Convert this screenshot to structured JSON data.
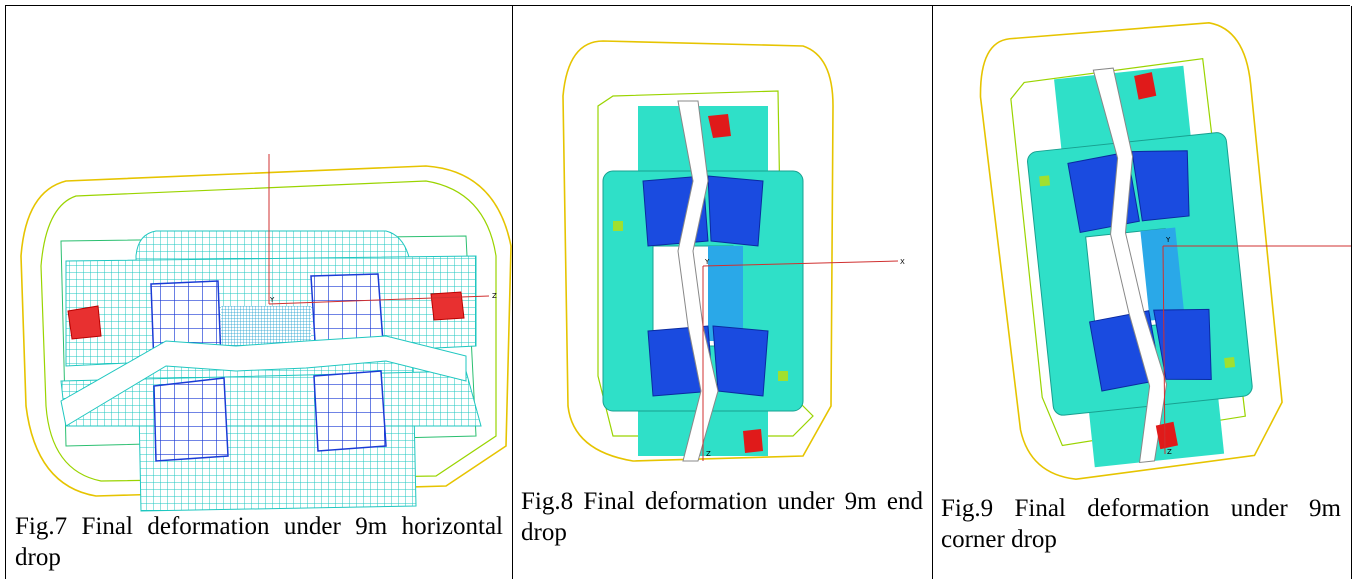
{
  "figures": [
    {
      "caption": "Fig.7 Final deformation under 9m horizontal drop",
      "axis_labels": [
        "Y",
        "Z"
      ]
    },
    {
      "caption": "Fig.8 Final deformation under 9m end drop",
      "axis_labels": [
        "Y",
        "X",
        "Z"
      ]
    },
    {
      "caption": "Fig.9 Final deformation under 9m corner drop",
      "axis_labels": [
        "Y",
        "Z"
      ]
    }
  ]
}
